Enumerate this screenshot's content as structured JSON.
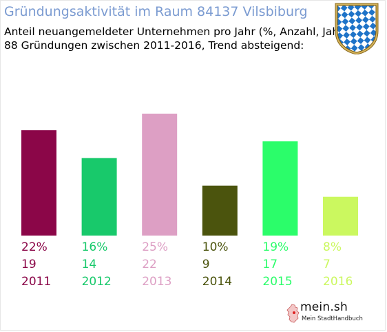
{
  "header": {
    "title": "Gründungsaktivität im Raum 84137 Vilsbiburg",
    "subtitle_line1": "Anteil neuangemeldeter Unternehmen pro Jahr (%, Anzahl, Jahr)",
    "subtitle_line2": "88 Gründungen zwischen 2011-2016, Trend absteigend:"
  },
  "icons": {
    "crest": "bavarian-coat-of-arms",
    "brand_logo": "germany-map-icon"
  },
  "brand": {
    "name": "mein.sh",
    "tagline": "Mein StadtHandbuch"
  },
  "chart_data": {
    "type": "bar",
    "title": "Gründungsaktivität im Raum 84137 Vilsbiburg",
    "xlabel": "",
    "ylabel": "",
    "grid": false,
    "legend": "none",
    "categories": [
      "2011",
      "2012",
      "2013",
      "2014",
      "2015",
      "2016"
    ],
    "values": [
      19,
      14,
      22,
      9,
      17,
      7
    ],
    "percent_labels": [
      "22%",
      "16%",
      "25%",
      "10%",
      "19%",
      "8%"
    ],
    "count_labels": [
      "19",
      "14",
      "22",
      "9",
      "17",
      "7"
    ],
    "colors": [
      "#8b0648",
      "#18c96b",
      "#dd9fc4",
      "#4b540d",
      "#2bfd6a",
      "#cbf85f"
    ],
    "ylim": [
      0,
      22
    ]
  }
}
